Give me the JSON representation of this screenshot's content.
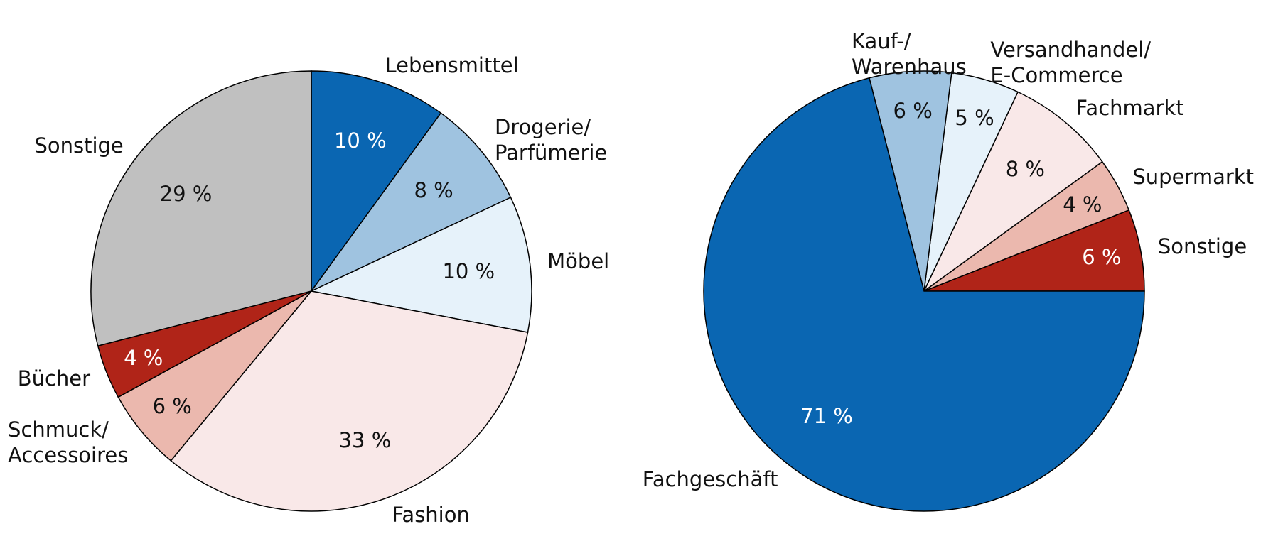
{
  "chart_data": [
    {
      "type": "pie",
      "startangle": 90,
      "counterclock": false,
      "categories": [
        "Lebensmittel",
        "Drogerie/\nParfümerie",
        "Möbel",
        "Fashion",
        "Schmuck/\nAccessoires",
        "Bücher",
        "Sonstige"
      ],
      "values": [
        10,
        8,
        10,
        33,
        6,
        4,
        29
      ],
      "value_labels": [
        "10 %",
        "8 %",
        "10 %",
        "33 %",
        "6 %",
        "4 %",
        "29 %"
      ],
      "colors": [
        "#0a66b2",
        "#9fc3e0",
        "#e6f2fa",
        "#f9e8e8",
        "#ebb8ae",
        "#b02418",
        "#c0c0c0"
      ]
    },
    {
      "type": "pie",
      "startangle": 0,
      "counterclock": true,
      "categories": [
        "Sonstige",
        "Supermarkt",
        "Fachmarkt",
        "Versandhandel/\nE-Commerce",
        "Kauf-/\nWarenhaus",
        "Fachgeschäft"
      ],
      "values": [
        6,
        4,
        8,
        5,
        6,
        71
      ],
      "value_labels": [
        "6 %",
        "4 %",
        "8 %",
        "5 %",
        "6 %",
        "71 %"
      ],
      "colors": [
        "#b02418",
        "#ebb8ae",
        "#f9e8e8",
        "#e6f2fa",
        "#9fc3e0",
        "#0a66b2"
      ]
    }
  ]
}
